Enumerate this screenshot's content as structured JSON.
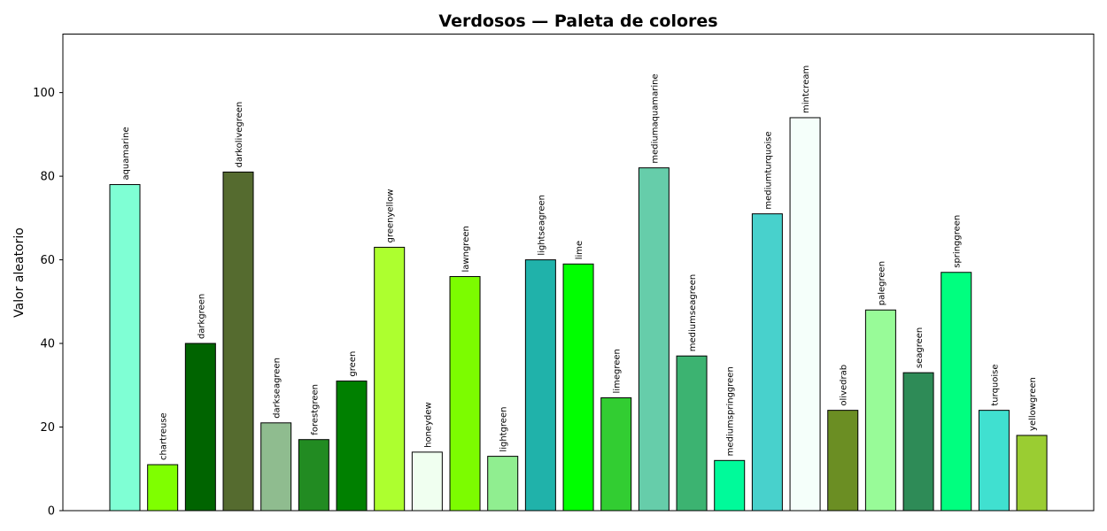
{
  "chart_data": {
    "type": "bar",
    "title": "Verdosos — Paleta de colores",
    "xlabel": "",
    "ylabel": "Valor aleatorio",
    "ylim": [
      0,
      114
    ],
    "yticks": [
      "0",
      "20",
      "40",
      "60",
      "80",
      "100"
    ],
    "grid": false,
    "legend": "none",
    "bar_edge_color": "#000000",
    "categories": [
      "aquamarine",
      "chartreuse",
      "darkgreen",
      "darkolivegreen",
      "darkseagreen",
      "forestgreen",
      "green",
      "greenyellow",
      "honeydew",
      "lawngreen",
      "lightgreen",
      "lightseagreen",
      "lime",
      "limegreen",
      "mediumaquamarine",
      "mediumseagreen",
      "mediumspringgreen",
      "mediumturquoise",
      "mintcream",
      "olivedrab",
      "palegreen",
      "seagreen",
      "springgreen",
      "turquoise",
      "yellowgreen"
    ],
    "values": [
      78,
      11,
      40,
      81,
      21,
      17,
      31,
      63,
      14,
      56,
      13,
      60,
      59,
      27,
      82,
      37,
      12,
      71,
      94,
      24,
      48,
      33,
      57,
      24,
      18
    ],
    "colors": [
      "#7FFFD4",
      "#7FFF00",
      "#006400",
      "#556B2F",
      "#8FBC8F",
      "#228B22",
      "#008000",
      "#ADFF2F",
      "#F0FFF0",
      "#7CFC00",
      "#90EE90",
      "#20B2AA",
      "#00FF00",
      "#32CD32",
      "#66CDAA",
      "#3CB371",
      "#00FA9A",
      "#48D1CC",
      "#F5FFFA",
      "#6B8E23",
      "#98FB98",
      "#2E8B57",
      "#00FF7F",
      "#40E0D0",
      "#9ACD32"
    ]
  }
}
